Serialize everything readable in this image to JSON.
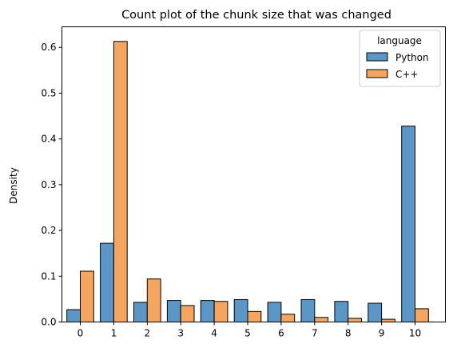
{
  "chart_data": {
    "type": "bar",
    "title": "Count plot of the chunk size that was changed",
    "xlabel": "",
    "ylabel": "Density",
    "categories": [
      "0",
      "1",
      "2",
      "3",
      "4",
      "5",
      "6",
      "7",
      "8",
      "9",
      "10"
    ],
    "ylim": [
      0,
      0.645
    ],
    "yticks": [
      "0.0",
      "0.1",
      "0.2",
      "0.3",
      "0.4",
      "0.5",
      "0.6"
    ],
    "grid": false,
    "legend": {
      "title": "language",
      "placement": "top-right"
    },
    "series": [
      {
        "name": "Python",
        "color": "#5b97c6",
        "values": [
          0.027,
          0.172,
          0.043,
          0.047,
          0.047,
          0.049,
          0.043,
          0.049,
          0.045,
          0.041,
          0.428
        ]
      },
      {
        "name": "C++",
        "color": "#f6a55e",
        "values": [
          0.111,
          0.613,
          0.094,
          0.036,
          0.045,
          0.023,
          0.017,
          0.01,
          0.008,
          0.006,
          0.029
        ]
      }
    ]
  }
}
